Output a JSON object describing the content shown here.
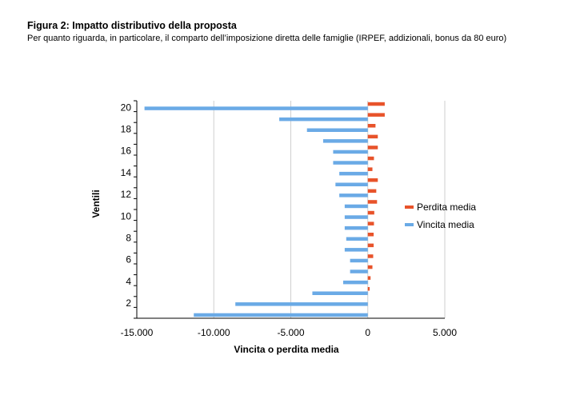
{
  "header": {
    "title": "Figura 2: Impatto distributivo della proposta",
    "subtitle": "Per quanto riguarda, in particolare, il comparto dell’imposizione diretta delle famiglie (IRPEF, addizionali, bonus da 80 euro)"
  },
  "chart_data": {
    "type": "bar",
    "orientation": "horizontal",
    "xlabel": "Vincita o perdita media",
    "ylabel": "Ventili",
    "xlim": [
      -15000,
      5000
    ],
    "x_ticks": [
      -15000,
      -10000,
      -5000,
      0,
      5000
    ],
    "x_tick_labels": [
      "-15.000",
      "-10.000",
      "-5.000",
      "0",
      "5.000"
    ],
    "categories": [
      1,
      2,
      3,
      4,
      5,
      6,
      7,
      8,
      9,
      10,
      11,
      12,
      13,
      14,
      15,
      16,
      17,
      18,
      19,
      20
    ],
    "y_tick_labels": [
      "2",
      "4",
      "6",
      "8",
      "10",
      "12",
      "14",
      "16",
      "18",
      "20"
    ],
    "legend_position": "right",
    "grid": true,
    "series": [
      {
        "name": "Perdita media",
        "color": "#E8532A",
        "values": [
          0,
          0,
          120,
          180,
          300,
          350,
          380,
          380,
          400,
          420,
          600,
          550,
          650,
          300,
          400,
          650,
          650,
          500,
          1100,
          1100
        ]
      },
      {
        "name": "Vincita media",
        "color": "#6AAAE6",
        "values": [
          -11300,
          -8600,
          -3600,
          -1600,
          -1150,
          -1150,
          -1500,
          -1400,
          -1500,
          -1500,
          -1500,
          -1850,
          -2100,
          -1850,
          -2250,
          -2250,
          -2900,
          -3950,
          -5750,
          -14500
        ]
      }
    ]
  }
}
